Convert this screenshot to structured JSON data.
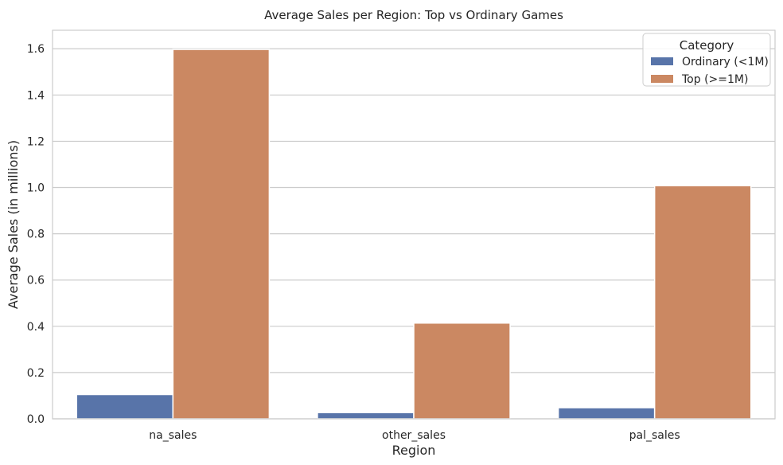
{
  "chart_data": {
    "type": "bar",
    "title": "Average Sales per Region: Top vs Ordinary Games",
    "xlabel": "Region",
    "ylabel": "Average Sales (in millions)",
    "categories": [
      "na_sales",
      "other_sales",
      "pal_sales"
    ],
    "series": [
      {
        "name": "Ordinary (<1M)",
        "values": [
          0.105,
          0.027,
          0.048
        ],
        "color": "#5874a9"
      },
      {
        "name": "Top (>=1M)",
        "values": [
          1.597,
          0.414,
          1.008
        ],
        "color": "#cb8862"
      }
    ],
    "ylim": [
      0,
      1.68
    ],
    "yticks": [
      "0.0",
      "0.2",
      "0.4",
      "0.6",
      "0.8",
      "1.0",
      "1.2",
      "1.4",
      "1.6"
    ],
    "grid": true,
    "legend": {
      "title": "Category",
      "position": "top-right"
    }
  }
}
